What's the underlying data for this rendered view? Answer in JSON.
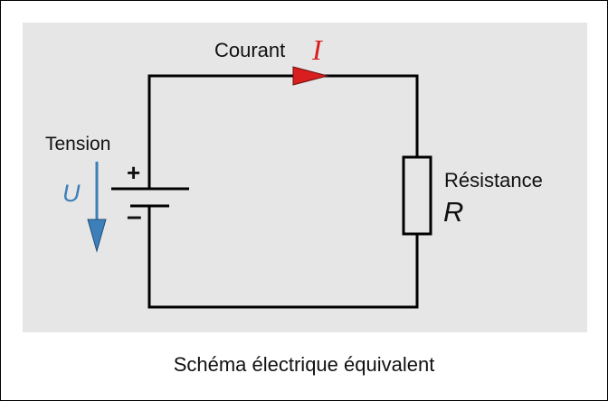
{
  "diagram": {
    "current_label": "Courant",
    "current_symbol": "I",
    "voltage_label": "Tension",
    "voltage_symbol": "U",
    "plus_sign": "+",
    "minus_sign": "–",
    "resistance_label": "Résistance",
    "resistance_symbol": "R",
    "caption": "Schéma électrique équivalent"
  },
  "colors": {
    "panel_background": "#e6e6e6",
    "current_arrow": "#d81e1e",
    "voltage_arrow": "#3d7fb8",
    "wire": "#000000"
  },
  "icons": {
    "battery": "battery-icon",
    "resistor": "resistor-icon",
    "current_arrow": "arrow-right-icon",
    "voltage_arrow": "arrow-down-icon"
  }
}
